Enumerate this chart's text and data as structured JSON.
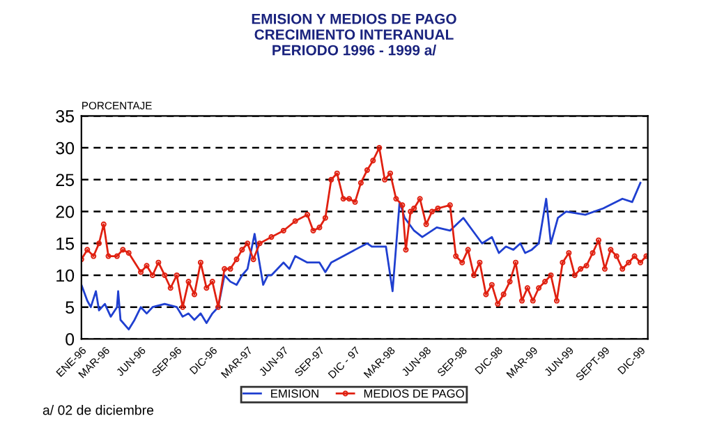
{
  "chart_data": {
    "type": "line",
    "title": "EMISION Y MEDIOS DE PAGO\nCRECIMIENTO INTERANUAL\nPERIODO 1996 - 1999 a/",
    "ylabel": "PORCENTAJE",
    "annotations": [
      "a/ 02 de diciembre"
    ],
    "xlim": [
      "1996-01-01",
      "1999-12-20"
    ],
    "ylim": [
      0,
      35
    ],
    "yticks": [
      0,
      5,
      10,
      15,
      20,
      25,
      30,
      35
    ],
    "xticks": [
      {
        "value": "1996-01-01",
        "label": "ENE-96"
      },
      {
        "value": "1996-03-01",
        "label": "MAR-96"
      },
      {
        "value": "1996-06-01",
        "label": "JUN-96"
      },
      {
        "value": "1996-09-01",
        "label": "SEP-96"
      },
      {
        "value": "1996-12-01",
        "label": "DIC-96"
      },
      {
        "value": "1997-03-01",
        "label": "MAR-97"
      },
      {
        "value": "1997-06-01",
        "label": "JUN-97"
      },
      {
        "value": "1997-09-01",
        "label": "SEP-97"
      },
      {
        "value": "1997-12-01",
        "label": "DIC - 97"
      },
      {
        "value": "1998-03-01",
        "label": "MAR-98"
      },
      {
        "value": "1998-06-01",
        "label": "JUN-98"
      },
      {
        "value": "1998-09-01",
        "label": "SEP-98"
      },
      {
        "value": "1998-12-01",
        "label": "DIC-98"
      },
      {
        "value": "1999-03-01",
        "label": "MAR-99"
      },
      {
        "value": "1999-06-01",
        "label": "JUN-99"
      },
      {
        "value": "1999-09-01",
        "label": "SEPT-99"
      },
      {
        "value": "1999-12-01",
        "label": "DIC-99"
      }
    ],
    "grid": "y",
    "legend": "bottom",
    "line_style": "solid",
    "series": [
      {
        "name": "EMISION",
        "color": "#1f3fd0",
        "marker": "none",
        "x": [
          "1996-01-01",
          "1996-01-16",
          "1996-01-25",
          "1996-02-07",
          "1996-02-15",
          "1996-03-01",
          "1996-03-16",
          "1996-04-01",
          "1996-04-04",
          "1996-04-10",
          "1996-05-01",
          "1996-05-16",
          "1996-06-01",
          "1996-06-16",
          "1996-07-01",
          "1996-08-01",
          "1996-09-01",
          "1996-09-16",
          "1996-10-01",
          "1996-10-16",
          "1996-11-01",
          "1996-11-16",
          "1996-12-01",
          "1996-12-16",
          "1997-01-01",
          "1997-01-16",
          "1997-02-01",
          "1997-02-15",
          "1997-03-01",
          "1997-03-19",
          "1997-04-10",
          "1997-04-22",
          "1997-05-01",
          "1997-06-01",
          "1997-06-16",
          "1997-07-01",
          "1997-08-01",
          "1997-09-01",
          "1997-09-16",
          "1997-10-01",
          "1997-11-01",
          "1997-12-01",
          "1998-01-01",
          "1998-01-13",
          "1998-02-18",
          "1998-03-07",
          "1998-03-25",
          "1998-04-07",
          "1998-05-01",
          "1998-05-22",
          "1998-06-28",
          "1998-08-01",
          "1998-09-04",
          "1998-09-28",
          "1998-10-22",
          "1998-11-16",
          "1998-12-04",
          "1998-12-22",
          "1999-01-10",
          "1999-01-28",
          "1999-02-09",
          "1999-02-26",
          "1999-03-16",
          "1999-04-04",
          "1999-04-16",
          "1999-05-04",
          "1999-05-25",
          "1999-07-13",
          "1999-08-28",
          "1999-10-16",
          "1999-11-10",
          "1999-12-01"
        ],
        "values": [
          8.5,
          6,
          5,
          7.5,
          4.5,
          5.5,
          3.5,
          5,
          7.5,
          3,
          1.5,
          3,
          5,
          4,
          5,
          5.5,
          5,
          3.5,
          4,
          3,
          4,
          2.5,
          4,
          5,
          10,
          9,
          8.5,
          10,
          11,
          16.5,
          8.5,
          10,
          10,
          12,
          11,
          13,
          12,
          12,
          10.5,
          12,
          13,
          14,
          15,
          14.5,
          14.5,
          7.5,
          21.5,
          19,
          17,
          16,
          17.5,
          17,
          19,
          17,
          15,
          16,
          13.5,
          14.5,
          14,
          15,
          13.5,
          14,
          15,
          22,
          15,
          19,
          20,
          19.5,
          20.5,
          22,
          21.5,
          24.5
        ]
      },
      {
        "name": "MEDIOS DE PAGO",
        "color": "#e02010",
        "marker": "circle",
        "x": [
          "1996-01-01",
          "1996-01-16",
          "1996-02-01",
          "1996-02-15",
          "1996-02-27",
          "1996-03-10",
          "1996-04-01",
          "1996-04-16",
          "1996-05-01",
          "1996-06-01",
          "1996-06-16",
          "1996-07-01",
          "1996-07-16",
          "1996-08-01",
          "1996-08-16",
          "1996-09-01",
          "1996-09-16",
          "1996-10-01",
          "1996-10-16",
          "1996-11-01",
          "1996-11-16",
          "1996-12-01",
          "1996-12-16",
          "1997-01-01",
          "1997-01-16",
          "1997-02-01",
          "1997-02-15",
          "1997-03-01",
          "1997-03-16",
          "1997-04-01",
          "1997-05-01",
          "1997-06-01",
          "1997-07-01",
          "1997-08-01",
          "1997-08-16",
          "1997-09-01",
          "1997-09-16",
          "1997-10-01",
          "1997-10-16",
          "1997-11-01",
          "1997-11-16",
          "1997-12-01",
          "1997-12-16",
          "1998-01-01",
          "1998-01-16",
          "1998-02-01",
          "1998-02-15",
          "1998-03-01",
          "1998-03-16",
          "1998-04-01",
          "1998-04-10",
          "1998-04-22",
          "1998-05-01",
          "1998-05-16",
          "1998-06-01",
          "1998-06-16",
          "1998-07-01",
          "1998-08-01",
          "1998-08-16",
          "1998-09-01",
          "1998-09-16",
          "1998-10-01",
          "1998-10-16",
          "1998-11-01",
          "1998-11-16",
          "1998-12-01",
          "1998-12-16",
          "1999-01-01",
          "1999-01-16",
          "1999-02-01",
          "1999-02-15",
          "1999-03-01",
          "1999-03-16",
          "1999-04-01",
          "1999-04-16",
          "1999-05-01",
          "1999-05-16",
          "1999-06-01",
          "1999-06-16",
          "1999-07-01",
          "1999-07-16",
          "1999-08-01",
          "1999-08-16",
          "1999-09-01",
          "1999-09-16",
          "1999-10-01",
          "1999-10-16",
          "1999-11-01",
          "1999-11-16",
          "1999-12-01",
          "1999-12-16"
        ],
        "values": [
          12.5,
          14,
          13,
          15,
          18,
          13,
          13,
          14,
          13.5,
          10.5,
          11.5,
          10,
          12,
          10,
          8,
          10,
          5,
          9,
          7,
          12,
          8,
          9,
          5,
          11,
          11,
          12.5,
          14,
          15,
          12.5,
          15,
          16,
          17,
          18.5,
          19.5,
          17,
          17.5,
          19,
          25,
          26,
          22,
          22,
          21.5,
          24.5,
          26.5,
          28,
          30,
          25,
          26,
          22,
          21,
          14,
          20,
          20.5,
          22,
          18,
          20,
          20.5,
          21,
          13,
          12,
          14,
          10,
          12,
          7,
          8.5,
          5.5,
          7,
          9,
          12,
          6,
          8,
          6,
          8,
          9,
          10,
          6,
          12,
          13.5,
          10,
          11,
          11.5,
          13.5,
          15.5,
          11,
          14,
          13,
          11,
          12,
          13,
          12,
          13
        ]
      }
    ]
  }
}
